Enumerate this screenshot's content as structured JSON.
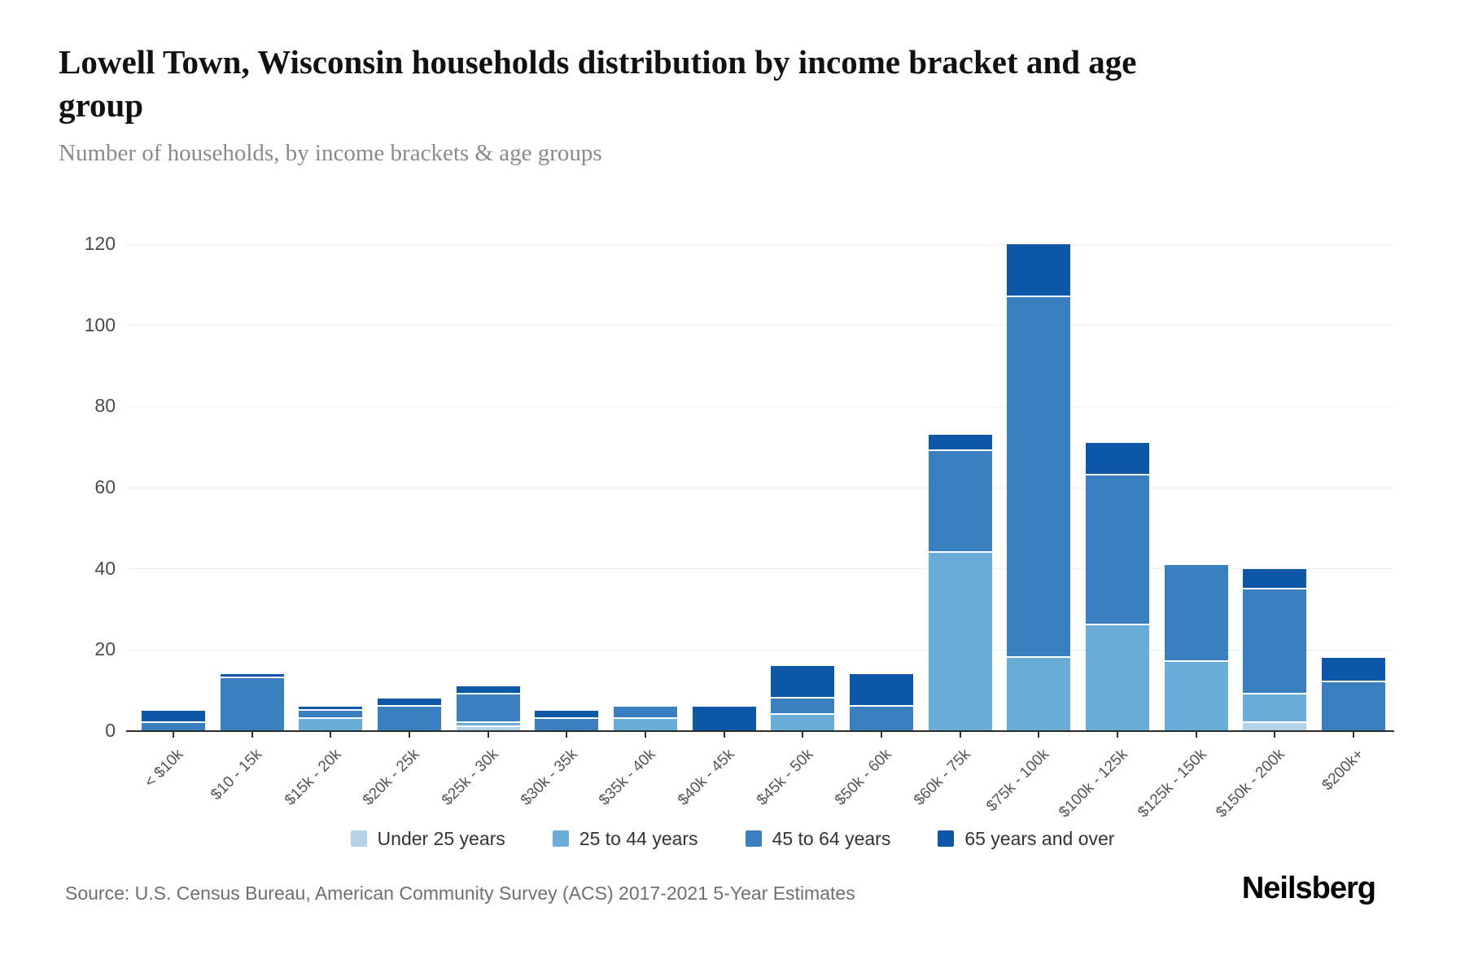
{
  "header": {
    "title": "Lowell Town, Wisconsin households distribution by income bracket and age group",
    "subtitle": "Number of households, by income brackets & age groups"
  },
  "chart_data": {
    "type": "bar",
    "stacked": true,
    "title": "Lowell Town, Wisconsin households distribution by income bracket and age group",
    "subtitle": "Number of households, by income brackets & age groups",
    "categories": [
      "< $10k",
      "$10 - 15k",
      "$15k - 20k",
      "$20k - 25k",
      "$25k - 30k",
      "$30k - 35k",
      "$35k - 40k",
      "$40k - 45k",
      "$45k - 50k",
      "$50k - 60k",
      "$60k - 75k",
      "$75k - 100k",
      "$100k - 125k",
      "$125k - 150k",
      "$150k - 200k",
      "$200k+"
    ],
    "series": [
      {
        "name": "Under 25 years",
        "color": "#b5d3e7",
        "values": [
          0,
          0,
          0,
          0,
          1,
          0,
          0,
          0,
          0,
          0,
          0,
          0,
          0,
          0,
          2,
          0
        ]
      },
      {
        "name": "25 to 44 years",
        "color": "#6aadd9",
        "values": [
          0,
          0,
          3,
          0,
          1,
          0,
          3,
          0,
          4,
          0,
          44,
          18,
          26,
          17,
          7,
          0
        ]
      },
      {
        "name": "45 to 64 years",
        "color": "#3a80c0",
        "values": [
          2,
          13,
          2,
          6,
          7,
          3,
          3,
          0,
          4,
          6,
          25,
          89,
          37,
          24,
          26,
          12
        ]
      },
      {
        "name": "65 years and over",
        "color": "#0e56a6",
        "values": [
          3,
          1,
          1,
          2,
          2,
          2,
          0,
          6,
          8,
          8,
          4,
          13,
          8,
          0,
          5,
          6
        ]
      }
    ],
    "totals": [
      5,
      14,
      6,
      8,
      11,
      5,
      6,
      6,
      16,
      14,
      73,
      120,
      71,
      41,
      40,
      18
    ],
    "xlabel": "",
    "ylabel": "",
    "ylim": [
      0,
      120
    ],
    "yticks": [
      0,
      20,
      40,
      60,
      80,
      100,
      120
    ],
    "grid": true,
    "legend_position": "bottom"
  },
  "footer": {
    "source": "Source: U.S. Census Bureau, American Community Survey (ACS) 2017-2021 5-Year Estimates",
    "brand": "Neilsberg"
  }
}
